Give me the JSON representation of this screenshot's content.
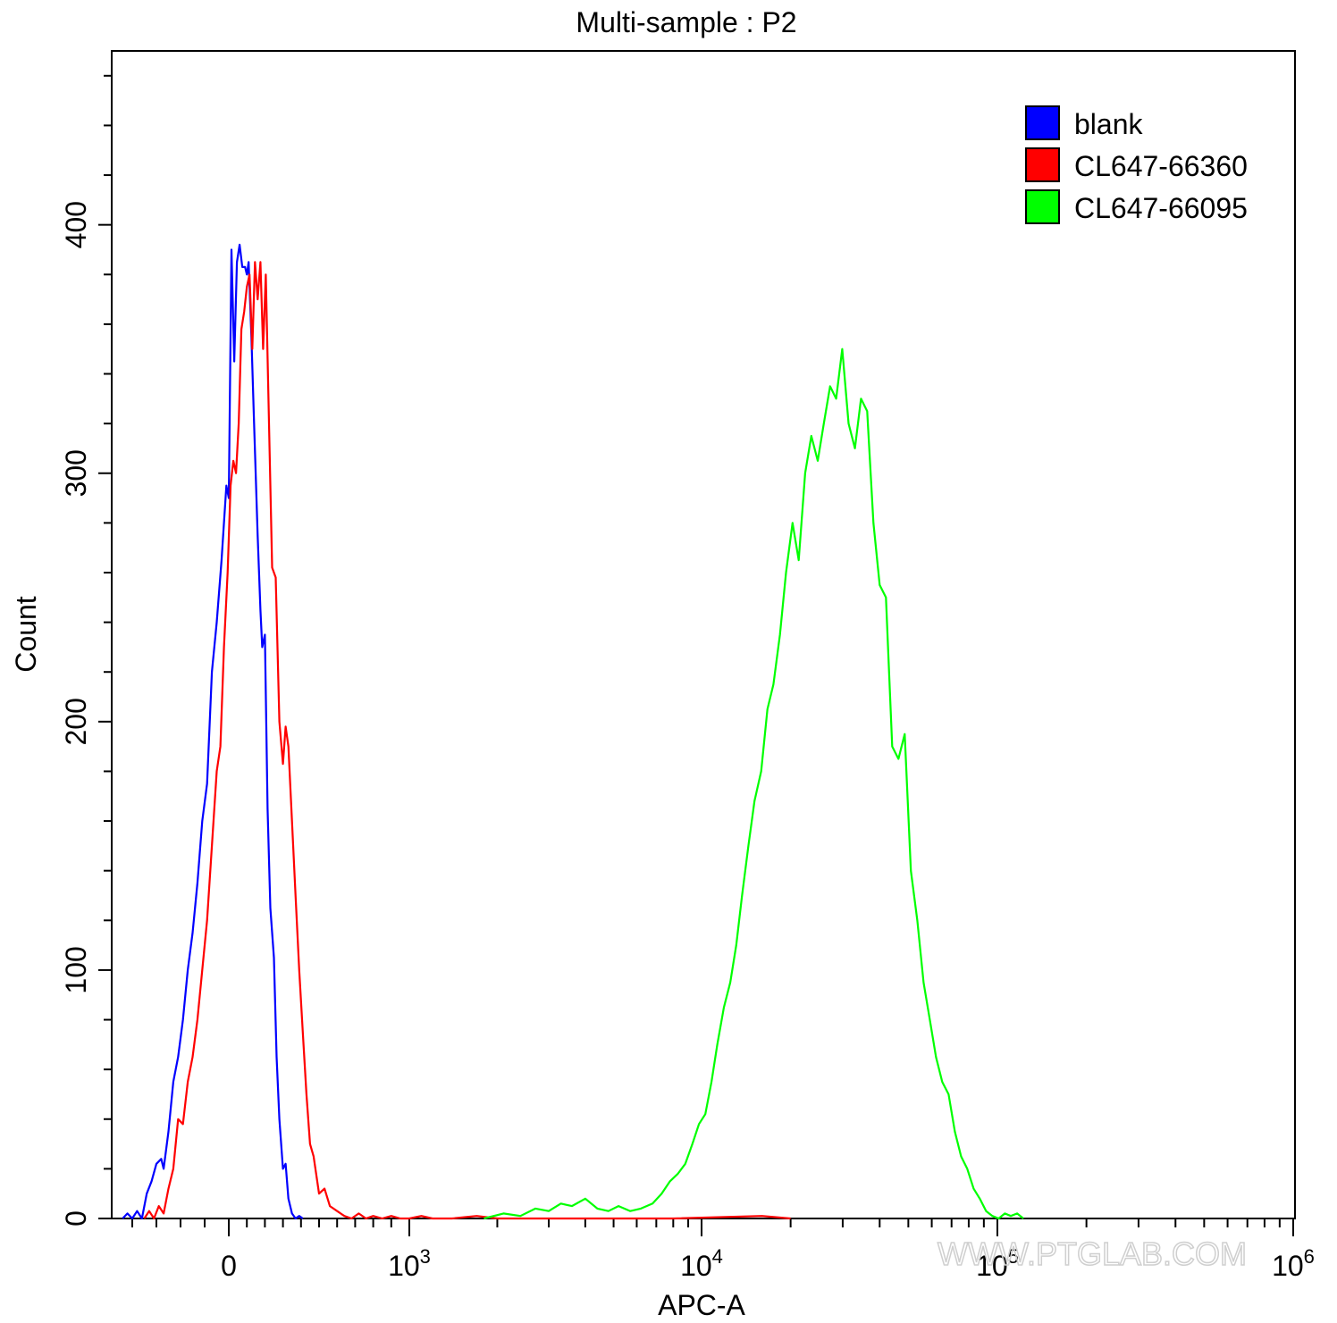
{
  "chart_data": {
    "type": "line",
    "title": "Multi-sample : P2",
    "xlabel": "APC-A",
    "ylabel": "Count",
    "x_scale": "logicle",
    "x_ticks": [
      {
        "value": 0,
        "label": "0"
      },
      {
        "value": 1000,
        "base": "10",
        "exp": "3"
      },
      {
        "value": 10000,
        "base": "10",
        "exp": "4"
      },
      {
        "value": 100000,
        "base": "10",
        "exp": "5"
      },
      {
        "value": 1000000,
        "base": "10",
        "exp": "6"
      }
    ],
    "y_ticks": [
      0,
      100,
      200,
      300,
      400
    ],
    "ylim": [
      0,
      470
    ],
    "grid": false,
    "legend_position": "top-right",
    "watermark": "WWW.PTGLAB.COM",
    "series": [
      {
        "name": "blank",
        "color": "#0000FF",
        "points": [
          [
            -440,
            0
          ],
          [
            -420,
            2
          ],
          [
            -400,
            0
          ],
          [
            -380,
            3
          ],
          [
            -360,
            0
          ],
          [
            -340,
            10
          ],
          [
            -320,
            15
          ],
          [
            -300,
            22
          ],
          [
            -280,
            24
          ],
          [
            -270,
            20
          ],
          [
            -250,
            35
          ],
          [
            -230,
            55
          ],
          [
            -210,
            65
          ],
          [
            -190,
            80
          ],
          [
            -170,
            100
          ],
          [
            -150,
            115
          ],
          [
            -130,
            135
          ],
          [
            -110,
            160
          ],
          [
            -90,
            175
          ],
          [
            -70,
            220
          ],
          [
            -50,
            240
          ],
          [
            -30,
            265
          ],
          [
            -10,
            295
          ],
          [
            0,
            290
          ],
          [
            15,
            390
          ],
          [
            30,
            345
          ],
          [
            45,
            385
          ],
          [
            60,
            392
          ],
          [
            75,
            383
          ],
          [
            90,
            383
          ],
          [
            100,
            380
          ],
          [
            110,
            385
          ],
          [
            125,
            355
          ],
          [
            140,
            320
          ],
          [
            160,
            275
          ],
          [
            175,
            245
          ],
          [
            185,
            230
          ],
          [
            200,
            235
          ],
          [
            215,
            165
          ],
          [
            230,
            125
          ],
          [
            250,
            105
          ],
          [
            265,
            65
          ],
          [
            280,
            40
          ],
          [
            300,
            20
          ],
          [
            315,
            22
          ],
          [
            330,
            8
          ],
          [
            350,
            2
          ],
          [
            370,
            0
          ],
          [
            390,
            1
          ],
          [
            410,
            0
          ]
        ]
      },
      {
        "name": "CL647-66360",
        "color": "#FF0000",
        "points": [
          [
            -350,
            0
          ],
          [
            -330,
            3
          ],
          [
            -310,
            0
          ],
          [
            -290,
            5
          ],
          [
            -270,
            2
          ],
          [
            -250,
            12
          ],
          [
            -230,
            20
          ],
          [
            -210,
            40
          ],
          [
            -190,
            38
          ],
          [
            -170,
            55
          ],
          [
            -150,
            65
          ],
          [
            -130,
            80
          ],
          [
            -110,
            100
          ],
          [
            -90,
            120
          ],
          [
            -70,
            150
          ],
          [
            -50,
            180
          ],
          [
            -35,
            190
          ],
          [
            -20,
            230
          ],
          [
            -5,
            260
          ],
          [
            10,
            295
          ],
          [
            25,
            305
          ],
          [
            40,
            300
          ],
          [
            55,
            320
          ],
          [
            70,
            358
          ],
          [
            85,
            365
          ],
          [
            100,
            375
          ],
          [
            115,
            380
          ],
          [
            130,
            350
          ],
          [
            145,
            385
          ],
          [
            160,
            370
          ],
          [
            175,
            385
          ],
          [
            190,
            350
          ],
          [
            205,
            380
          ],
          [
            220,
            330
          ],
          [
            240,
            262
          ],
          [
            260,
            258
          ],
          [
            280,
            200
          ],
          [
            300,
            183
          ],
          [
            315,
            198
          ],
          [
            330,
            190
          ],
          [
            350,
            160
          ],
          [
            370,
            130
          ],
          [
            390,
            100
          ],
          [
            410,
            75
          ],
          [
            430,
            50
          ],
          [
            450,
            30
          ],
          [
            470,
            25
          ],
          [
            500,
            10
          ],
          [
            530,
            12
          ],
          [
            560,
            5
          ],
          [
            600,
            3
          ],
          [
            640,
            1
          ],
          [
            680,
            0
          ],
          [
            720,
            2
          ],
          [
            760,
            0
          ],
          [
            800,
            1
          ],
          [
            850,
            0
          ],
          [
            900,
            1
          ],
          [
            950,
            0
          ],
          [
            1000,
            0
          ],
          [
            1100,
            1
          ],
          [
            1200,
            0
          ],
          [
            1400,
            0
          ],
          [
            1700,
            1
          ],
          [
            2000,
            0
          ],
          [
            2500,
            0
          ],
          [
            3000,
            0
          ],
          [
            5000,
            0
          ],
          [
            8000,
            0
          ],
          [
            16000,
            1
          ],
          [
            20000,
            0
          ]
        ]
      },
      {
        "name": "CL647-66095",
        "color": "#00FF00",
        "points": [
          [
            1800,
            0
          ],
          [
            2100,
            2
          ],
          [
            2400,
            1
          ],
          [
            2700,
            4
          ],
          [
            3000,
            3
          ],
          [
            3300,
            6
          ],
          [
            3600,
            5
          ],
          [
            4000,
            8
          ],
          [
            4400,
            4
          ],
          [
            4800,
            3
          ],
          [
            5200,
            5
          ],
          [
            5700,
            3
          ],
          [
            6200,
            4
          ],
          [
            6800,
            6
          ],
          [
            7300,
            10
          ],
          [
            7800,
            15
          ],
          [
            8300,
            18
          ],
          [
            8800,
            22
          ],
          [
            9300,
            30
          ],
          [
            9800,
            38
          ],
          [
            10300,
            42
          ],
          [
            10800,
            55
          ],
          [
            11300,
            70
          ],
          [
            11900,
            85
          ],
          [
            12500,
            95
          ],
          [
            13100,
            110
          ],
          [
            13700,
            130
          ],
          [
            14400,
            150
          ],
          [
            15100,
            168
          ],
          [
            15900,
            180
          ],
          [
            16700,
            205
          ],
          [
            17500,
            215
          ],
          [
            18400,
            235
          ],
          [
            19300,
            260
          ],
          [
            20300,
            280
          ],
          [
            21300,
            265
          ],
          [
            22400,
            300
          ],
          [
            23500,
            315
          ],
          [
            24700,
            305
          ],
          [
            25900,
            320
          ],
          [
            27200,
            335
          ],
          [
            28500,
            330
          ],
          [
            29900,
            350
          ],
          [
            31400,
            320
          ],
          [
            33000,
            310
          ],
          [
            34600,
            330
          ],
          [
            36300,
            325
          ],
          [
            38100,
            280
          ],
          [
            40000,
            255
          ],
          [
            42000,
            250
          ],
          [
            44100,
            190
          ],
          [
            46300,
            185
          ],
          [
            48600,
            195
          ],
          [
            51000,
            140
          ],
          [
            53600,
            120
          ],
          [
            56300,
            95
          ],
          [
            59100,
            80
          ],
          [
            62000,
            65
          ],
          [
            65100,
            55
          ],
          [
            68400,
            50
          ],
          [
            71800,
            35
          ],
          [
            75400,
            25
          ],
          [
            79100,
            20
          ],
          [
            83100,
            12
          ],
          [
            87200,
            8
          ],
          [
            91600,
            3
          ],
          [
            96200,
            1
          ],
          [
            101000,
            0
          ],
          [
            106000,
            2
          ],
          [
            111000,
            1
          ],
          [
            116600,
            2
          ],
          [
            122400,
            0
          ]
        ]
      }
    ]
  }
}
